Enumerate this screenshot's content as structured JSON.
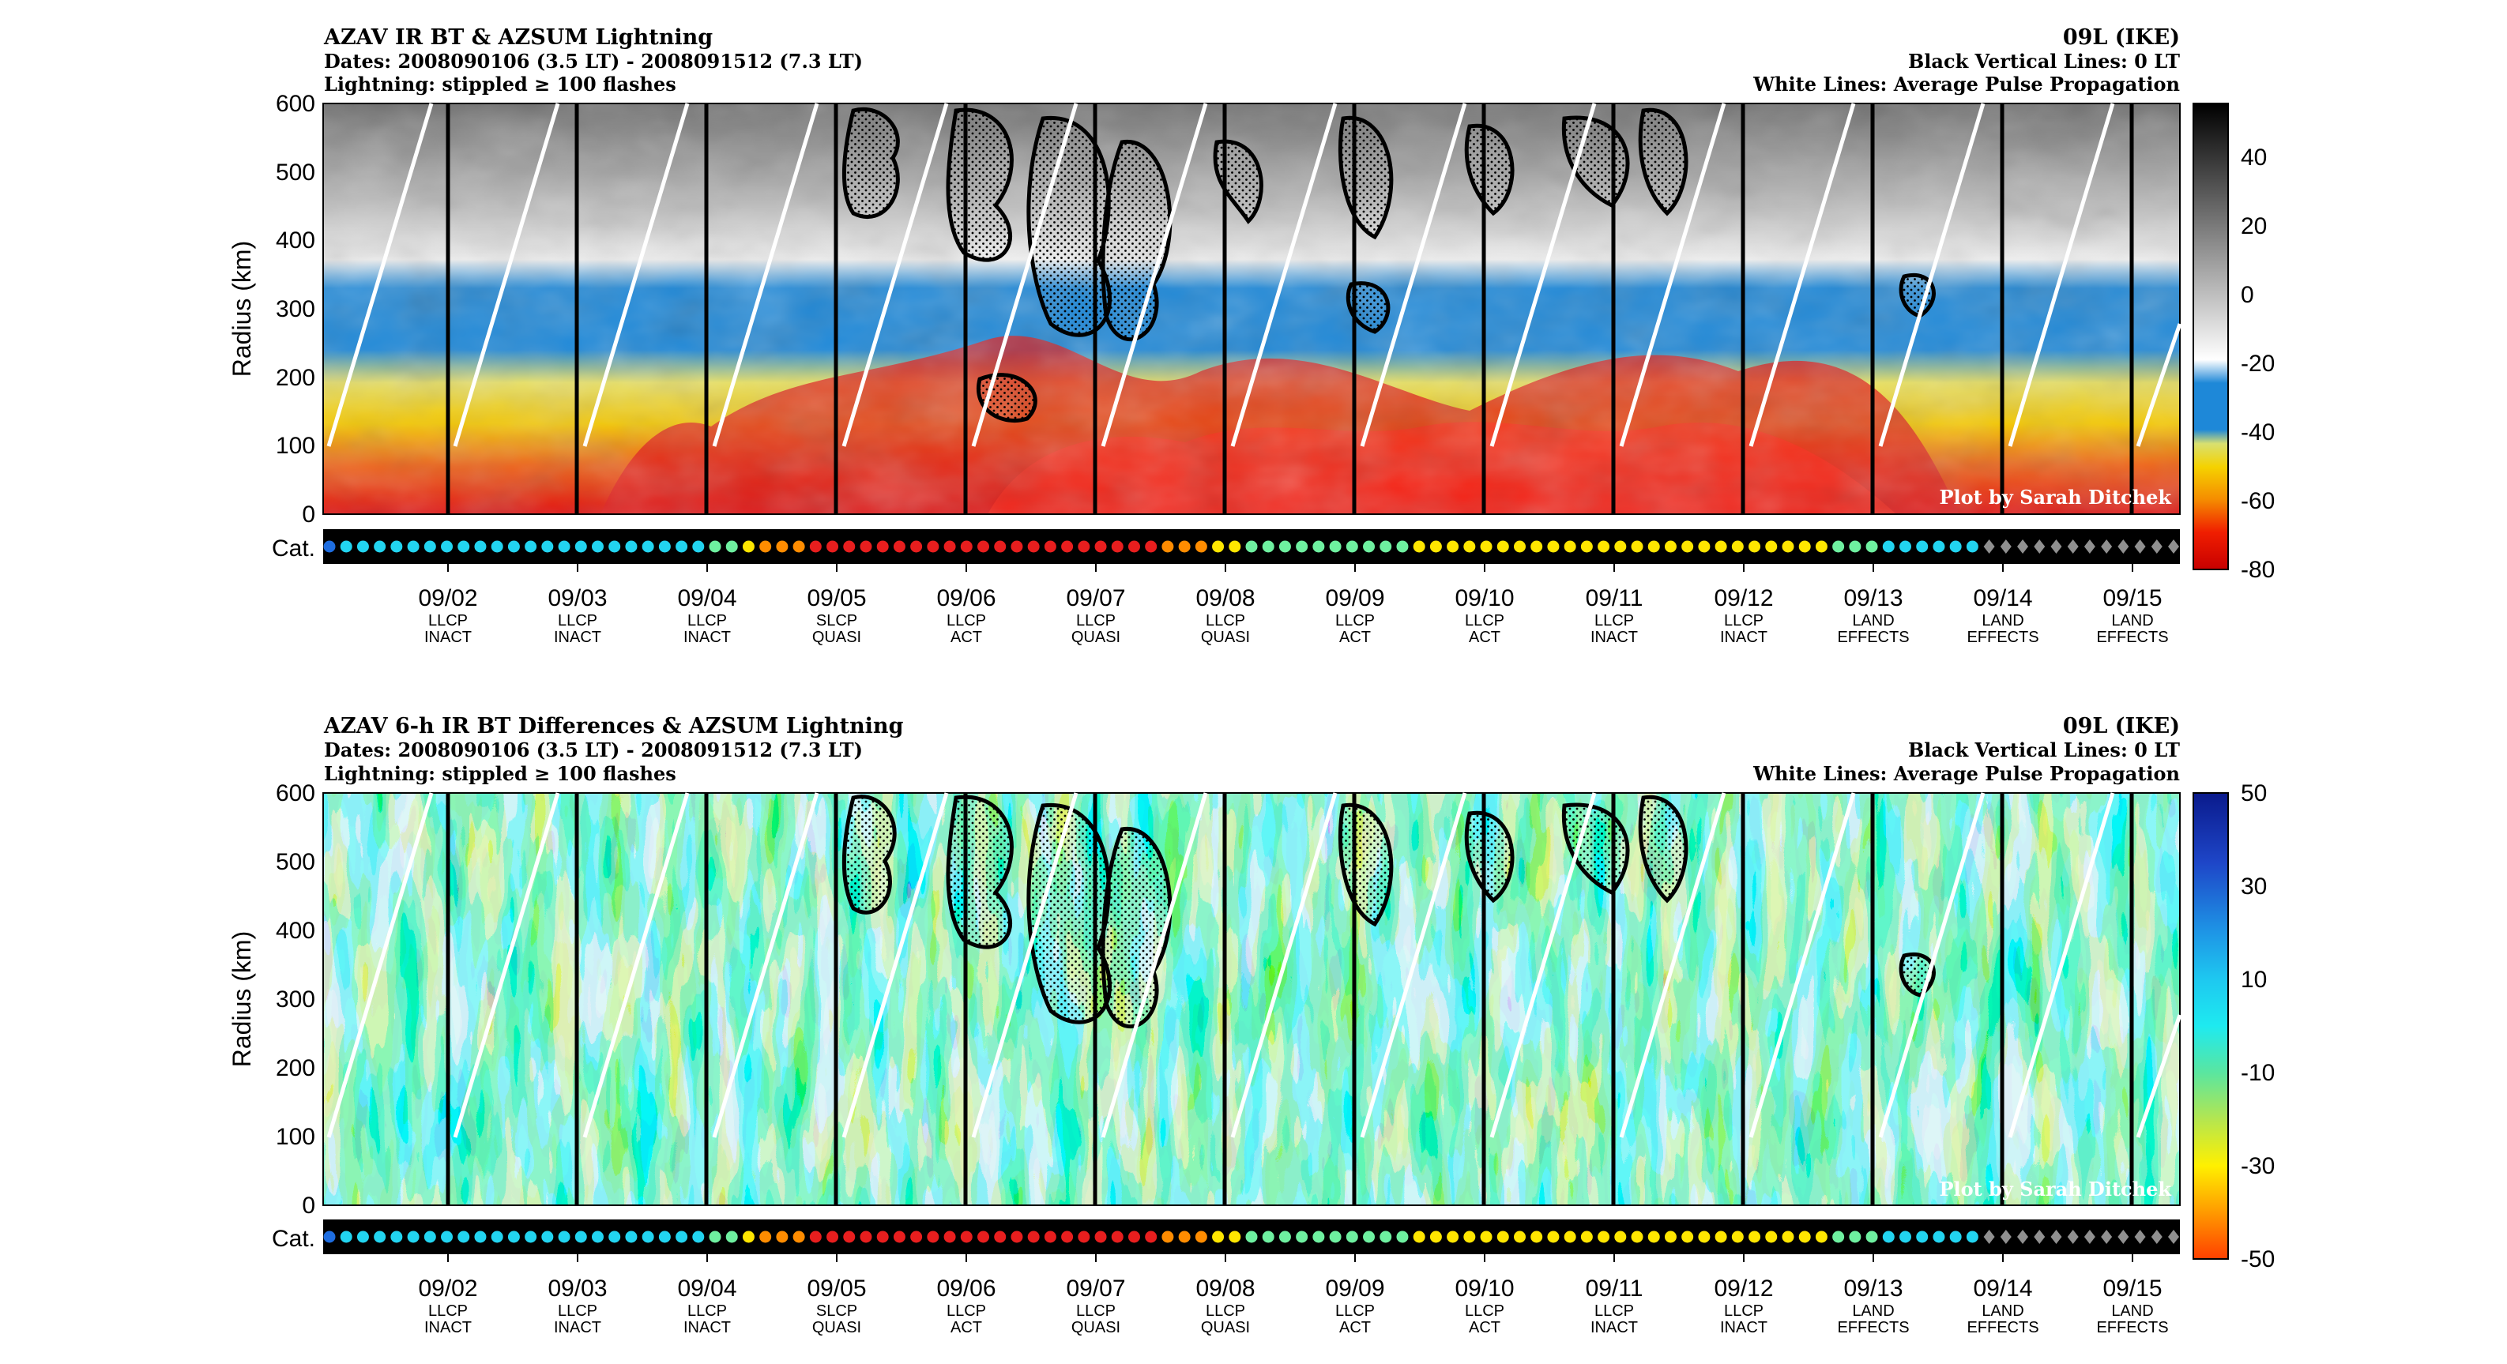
{
  "credit": "Plot by Sarah Ditchek",
  "x_axis": {
    "ticks": [
      "09/02",
      "09/03",
      "09/04",
      "09/05",
      "09/06",
      "09/07",
      "09/08",
      "09/09",
      "09/10",
      "09/11",
      "09/12",
      "09/13",
      "09/14",
      "09/15"
    ],
    "states": [
      [
        "LLCP",
        "INACT"
      ],
      [
        "LLCP",
        "INACT"
      ],
      [
        "LLCP",
        "INACT"
      ],
      [
        "SLCP",
        "QUASI"
      ],
      [
        "LLCP",
        "ACT"
      ],
      [
        "LLCP",
        "QUASI"
      ],
      [
        "LLCP",
        "QUASI"
      ],
      [
        "LLCP",
        "ACT"
      ],
      [
        "LLCP",
        "ACT"
      ],
      [
        "LLCP",
        "INACT"
      ],
      [
        "LLCP",
        "INACT"
      ],
      [
        "LAND",
        "EFFECTS"
      ],
      [
        "LAND",
        "EFFECTS"
      ],
      [
        "LAND",
        "EFFECTS"
      ]
    ]
  },
  "category_label": "Cat.",
  "category_colors": {
    "ts": "#1e6de0",
    "c1": "#22d4f0",
    "c2": "#6ef0a0",
    "c3": "#ffe600",
    "c4": "#ff8c00",
    "c5": "#e81e1e",
    "land": "#909090"
  },
  "panels": [
    {
      "title": "AZAV IR BT & AZSUM Lightning",
      "dates": "Dates: 2008090106 (3.5 LT) - 2008091512 (7.3 LT)",
      "lightning": "Lightning: stippled ≥ 100 flashes",
      "storm": "09L (IKE)",
      "black_lines": "Black Vertical Lines: 0 LT",
      "white_lines": "White Lines: Average Pulse Propagation",
      "ylabel": "Radius (km)",
      "yticks": [
        "0",
        "100",
        "200",
        "300",
        "400",
        "500",
        "600"
      ],
      "colorbar_ticks": [
        "40",
        "20",
        "0",
        "-20",
        "-40",
        "-60",
        "-80"
      ]
    },
    {
      "title": "AZAV 6-h IR BT Differences & AZSUM Lightning",
      "dates": "Dates: 2008090106 (3.5 LT) - 2008091512 (7.3 LT)",
      "lightning": "Lightning: stippled ≥ 100 flashes",
      "storm": "09L (IKE)",
      "black_lines": "Black Vertical Lines: 0 LT",
      "white_lines": "White Lines: Average Pulse Propagation",
      "ylabel": "Radius (km)",
      "yticks": [
        "0",
        "100",
        "200",
        "300",
        "400",
        "500",
        "600"
      ],
      "colorbar_ticks": [
        "50",
        "30",
        "10",
        "-10",
        "-30",
        "-50"
      ]
    }
  ],
  "chart_data": [
    {
      "type": "heatmap",
      "title": "AZAV IR BT & AZSUM Lightning",
      "xlabel": "",
      "ylabel": "Radius (km)",
      "x_categories": [
        "09/02",
        "09/03",
        "09/04",
        "09/05",
        "09/06",
        "09/07",
        "09/08",
        "09/09",
        "09/10",
        "09/11",
        "09/12",
        "09/13",
        "09/14",
        "09/15"
      ],
      "x_range": [
        "2008090106",
        "2008091512"
      ],
      "ylim": [
        0,
        600
      ],
      "colorbar_range": [
        -80,
        53
      ],
      "colorbar_ticks": [
        40,
        20,
        0,
        -20,
        -40,
        -60,
        -80
      ],
      "annotations": [
        "09L (IKE)",
        "Black Vertical Lines: 0 LT",
        "White Lines: Average Pulse Propagation",
        "Lightning: stippled ≥ 100 flashes"
      ]
    },
    {
      "type": "heatmap",
      "title": "AZAV 6-h IR BT Differences & AZSUM Lightning",
      "xlabel": "",
      "ylabel": "Radius (km)",
      "x_categories": [
        "09/02",
        "09/03",
        "09/04",
        "09/05",
        "09/06",
        "09/07",
        "09/08",
        "09/09",
        "09/10",
        "09/11",
        "09/12",
        "09/13",
        "09/14",
        "09/15"
      ],
      "x_range": [
        "2008090106",
        "2008091512"
      ],
      "ylim": [
        0,
        600
      ],
      "colorbar_range": [
        -50,
        50
      ],
      "colorbar_ticks": [
        50,
        30,
        10,
        -10,
        -30,
        -50
      ],
      "annotations": [
        "09L (IKE)",
        "Black Vertical Lines: 0 LT",
        "White Lines: Average Pulse Propagation",
        "Lightning: stippled ≥ 100 flashes"
      ]
    }
  ]
}
